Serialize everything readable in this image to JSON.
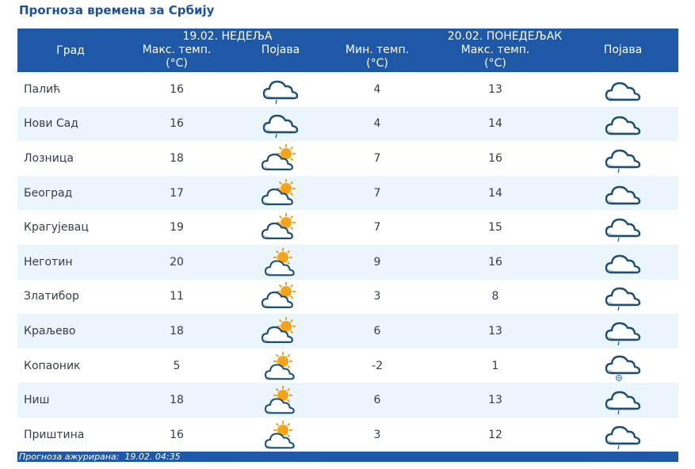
{
  "title": "Прогноза времена за Србију",
  "header": {
    "day1": "19.02. НЕДЕЉА",
    "day2": "20.02. ПОНЕДЕЉАК",
    "city": "Град",
    "max_temp": "Макс. темп.",
    "min_temp": "Мин. темп.",
    "unit": "(°C)",
    "phenomenon": "Појава"
  },
  "rows": [
    {
      "city": "Палић",
      "d1_max": "16",
      "d1_icon": "cloud-light-rain-icon",
      "d2_min": "4",
      "d2_max": "13",
      "d2_icon": "cloudy-icon"
    },
    {
      "city": "Нови Сад",
      "d1_max": "16",
      "d1_icon": "cloud-light-rain-icon",
      "d2_min": "4",
      "d2_max": "14",
      "d2_icon": "cloudy-icon"
    },
    {
      "city": "Лозница",
      "d1_max": "18",
      "d1_icon": "mostly-cloudy-sun-icon",
      "d2_min": "7",
      "d2_max": "16",
      "d2_icon": "cloud-light-rain-icon"
    },
    {
      "city": "Београд",
      "d1_max": "17",
      "d1_icon": "mostly-cloudy-sun-icon",
      "d2_min": "7",
      "d2_max": "14",
      "d2_icon": "cloudy-icon"
    },
    {
      "city": "Крагујевац",
      "d1_max": "19",
      "d1_icon": "mostly-cloudy-sun-icon",
      "d2_min": "7",
      "d2_max": "15",
      "d2_icon": "cloud-light-rain-icon"
    },
    {
      "city": "Неготин",
      "d1_max": "20",
      "d1_icon": "partly-cloudy-sun-icon",
      "d2_min": "9",
      "d2_max": "16",
      "d2_icon": "cloudy-icon"
    },
    {
      "city": "Златибор",
      "d1_max": "11",
      "d1_icon": "mostly-cloudy-sun-icon",
      "d2_min": "3",
      "d2_max": "8",
      "d2_icon": "cloud-light-rain-icon"
    },
    {
      "city": "Краљево",
      "d1_max": "18",
      "d1_icon": "mostly-cloudy-sun-icon",
      "d2_min": "6",
      "d2_max": "13",
      "d2_icon": "cloud-light-rain-icon"
    },
    {
      "city": "Копаоник",
      "d1_max": "5",
      "d1_icon": "partly-cloudy-sun-icon",
      "d2_min": "-2",
      "d2_max": "1",
      "d2_icon": "cloud-snow-icon"
    },
    {
      "city": "Ниш",
      "d1_max": "18",
      "d1_icon": "partly-cloudy-sun-icon",
      "d2_min": "6",
      "d2_max": "13",
      "d2_icon": "cloud-light-rain-icon"
    },
    {
      "city": "Приштина",
      "d1_max": "16",
      "d1_icon": "partly-cloudy-sun-icon",
      "d2_min": "3",
      "d2_max": "12",
      "d2_icon": "cloud-light-rain-icon"
    }
  ],
  "footer": "Прогноза ажурирана:  19.02. 04:35",
  "colors": {
    "header_bg": "#1f58a7",
    "title": "#1c4f9c",
    "row_alt": "#eaf6fb",
    "cloud_dark": "#1d4f74",
    "sun": "#f5a31a"
  }
}
